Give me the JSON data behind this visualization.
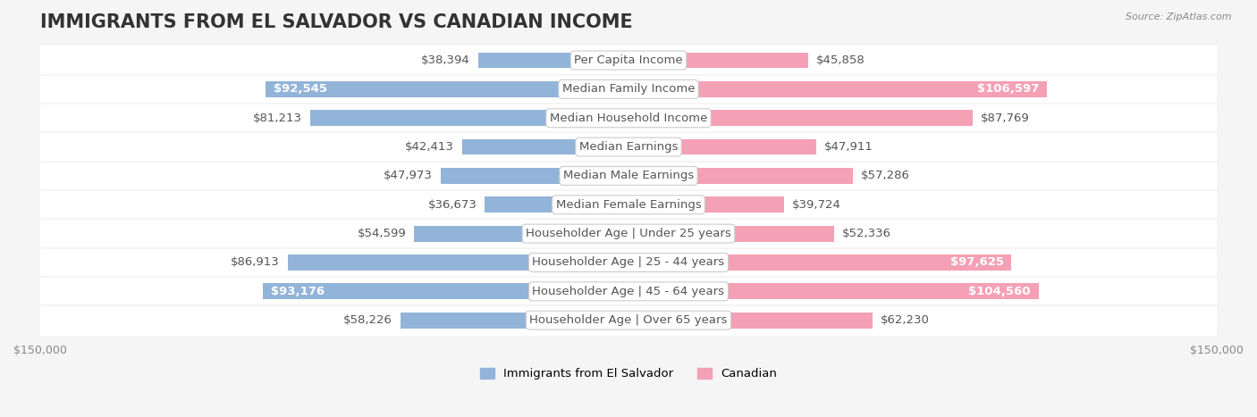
{
  "title": "IMMIGRANTS FROM EL SALVADOR VS CANADIAN INCOME",
  "source": "Source: ZipAtlas.com",
  "categories": [
    "Per Capita Income",
    "Median Family Income",
    "Median Household Income",
    "Median Earnings",
    "Median Male Earnings",
    "Median Female Earnings",
    "Householder Age | Under 25 years",
    "Householder Age | 25 - 44 years",
    "Householder Age | 45 - 64 years",
    "Householder Age | Over 65 years"
  ],
  "left_values": [
    38394,
    92545,
    81213,
    42413,
    47973,
    36673,
    54599,
    86913,
    93176,
    58226
  ],
  "right_values": [
    45858,
    106597,
    87769,
    47911,
    57286,
    39724,
    52336,
    97625,
    104560,
    62230
  ],
  "left_labels": [
    "$38,394",
    "$92,545",
    "$81,213",
    "$42,413",
    "$47,973",
    "$36,673",
    "$54,599",
    "$86,913",
    "$93,176",
    "$58,226"
  ],
  "right_labels": [
    "$45,858",
    "$106,597",
    "$87,769",
    "$47,911",
    "$57,286",
    "$39,724",
    "$52,336",
    "$97,625",
    "$104,560",
    "$62,230"
  ],
  "left_color": "#92b4d9",
  "left_color_dark": "#6699cc",
  "right_color": "#f4a0b5",
  "right_color_dark": "#e87090",
  "left_label_inside": [
    false,
    true,
    false,
    false,
    false,
    false,
    false,
    false,
    true,
    false
  ],
  "right_label_inside": [
    false,
    true,
    false,
    false,
    false,
    false,
    false,
    true,
    true,
    false
  ],
  "axis_max": 150000,
  "legend_left": "Immigrants from El Salvador",
  "legend_right": "Canadian",
  "bar_height": 0.55,
  "background_color": "#f5f5f5",
  "row_bg_color": "#ffffff",
  "title_fontsize": 15,
  "label_fontsize": 9.5,
  "category_fontsize": 9.5
}
